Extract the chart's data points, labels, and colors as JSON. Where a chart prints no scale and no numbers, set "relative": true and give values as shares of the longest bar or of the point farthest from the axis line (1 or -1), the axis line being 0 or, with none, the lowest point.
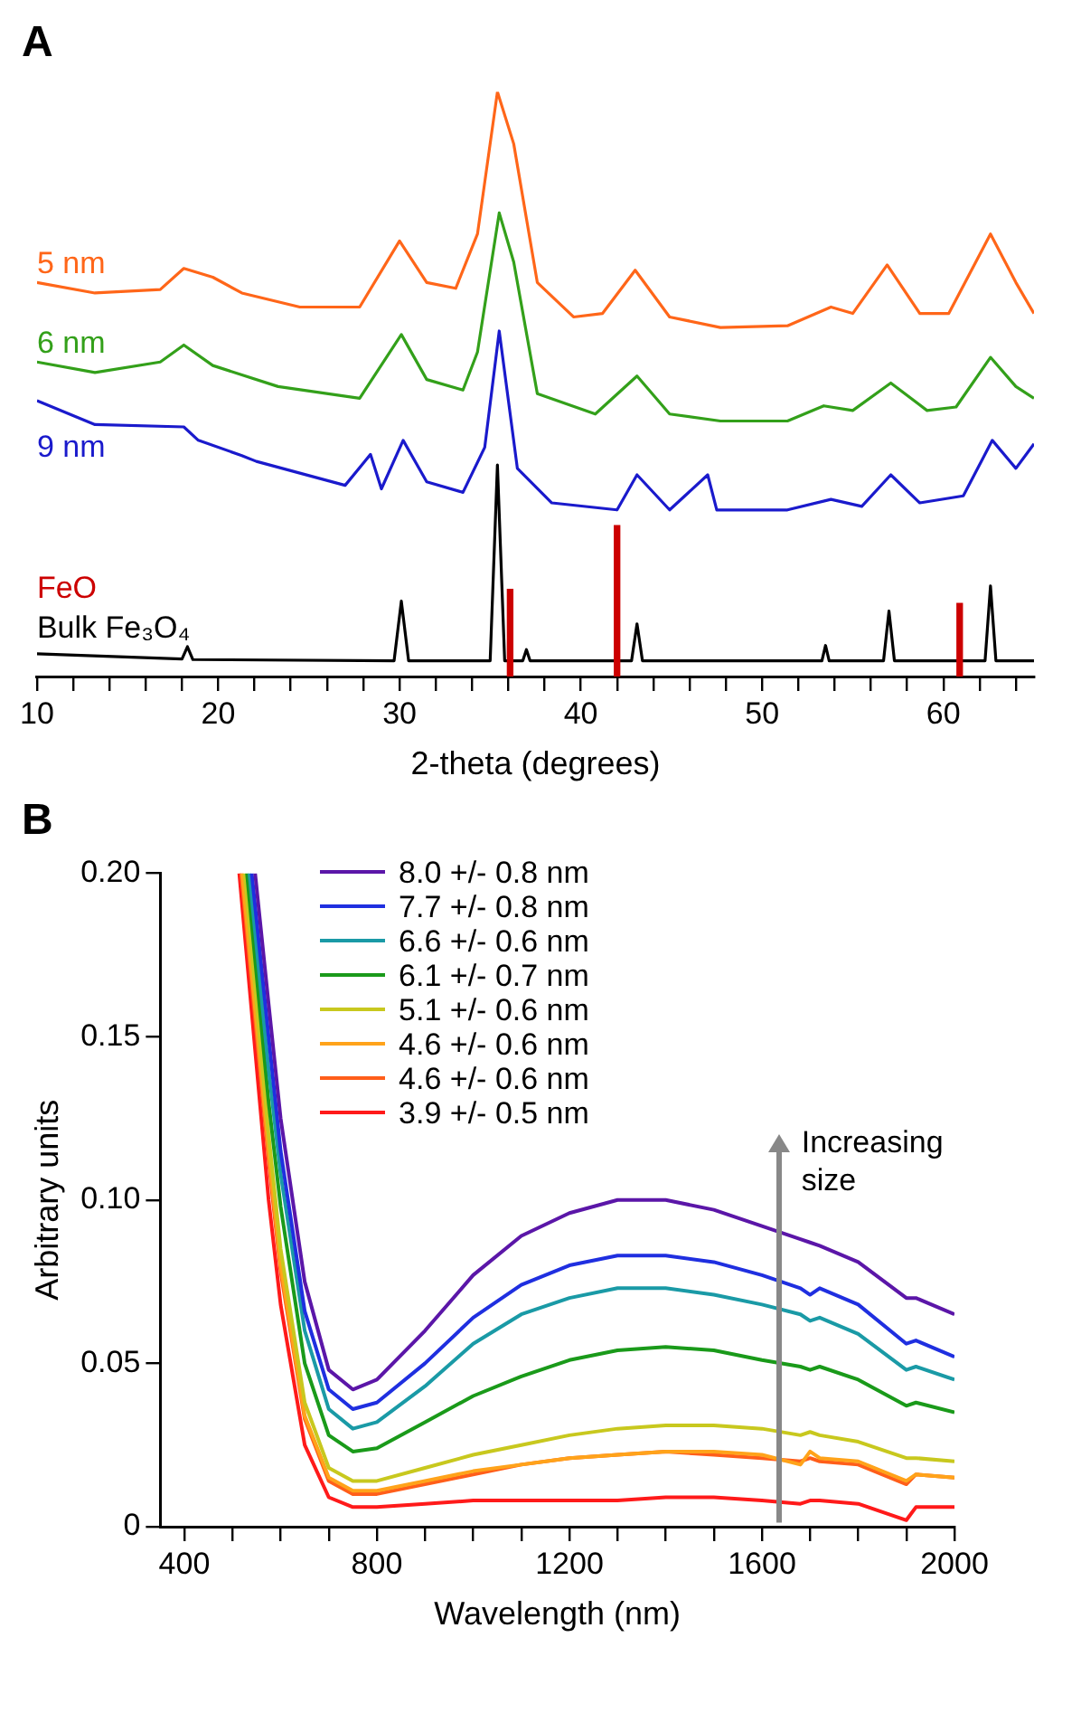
{
  "chart_data": [
    {
      "type": "line",
      "title": "A",
      "xlabel": "2-theta (degrees)",
      "relative": true,
      "legend": false,
      "grid": false,
      "xlim": [
        10,
        65
      ],
      "xticks": [
        10,
        {
          "value": 12,
          "label": null
        },
        {
          "value": 14,
          "label": null
        },
        {
          "value": 16,
          "label": null
        },
        {
          "value": 18,
          "label": null
        },
        20,
        {
          "value": 22,
          "label": null
        },
        {
          "value": 24,
          "label": null
        },
        {
          "value": 26,
          "label": null
        },
        {
          "value": 28,
          "label": null
        },
        30,
        {
          "value": 32,
          "label": null
        },
        {
          "value": 34,
          "label": null
        },
        {
          "value": 36,
          "label": null
        },
        {
          "value": 38,
          "label": null
        },
        40,
        {
          "value": 42,
          "label": null
        },
        {
          "value": 44,
          "label": null
        },
        {
          "value": 46,
          "label": null
        },
        {
          "value": 48,
          "label": null
        },
        50,
        {
          "value": 52,
          "label": null
        },
        {
          "value": 54,
          "label": null
        },
        {
          "value": 56,
          "label": null
        },
        {
          "value": 58,
          "label": null
        },
        60,
        {
          "value": 62,
          "label": null
        },
        {
          "value": 64,
          "label": null
        }
      ],
      "series": [
        {
          "name": "5 nm",
          "color": "#ff6619",
          "x": [
            10.0,
            13.2,
            16.8,
            18.1,
            19.7,
            21.3,
            24.5,
            27.8,
            30.0,
            31.5,
            33.1,
            34.3,
            35.4,
            36.3,
            37.6,
            39.6,
            41.2,
            43.0,
            44.9,
            47.7,
            51.4,
            53.8,
            55.0,
            56.9,
            58.7,
            60.3,
            62.6,
            64.0,
            65.0
          ],
          "values": [
            0.674,
            0.656,
            0.662,
            0.698,
            0.683,
            0.656,
            0.632,
            0.632,
            0.745,
            0.674,
            0.664,
            0.757,
            1.0,
            0.911,
            0.674,
            0.615,
            0.621,
            0.695,
            0.615,
            0.597,
            0.6,
            0.632,
            0.621,
            0.704,
            0.621,
            0.621,
            0.757,
            0.674,
            0.621
          ]
        },
        {
          "name": "6 nm",
          "color": "#33a01a",
          "x": [
            10.0,
            13.2,
            16.8,
            18.1,
            19.7,
            23.3,
            27.8,
            30.1,
            31.5,
            33.5,
            34.3,
            35.5,
            36.3,
            37.6,
            40.8,
            43.1,
            44.9,
            47.7,
            51.4,
            53.4,
            55.0,
            57.1,
            59.1,
            60.7,
            62.6,
            64.0,
            65.0
          ],
          "values": [
            0.538,
            0.52,
            0.538,
            0.567,
            0.532,
            0.496,
            0.476,
            0.585,
            0.508,
            0.49,
            0.555,
            0.793,
            0.709,
            0.484,
            0.449,
            0.514,
            0.449,
            0.437,
            0.437,
            0.463,
            0.455,
            0.502,
            0.455,
            0.461,
            0.546,
            0.496,
            0.476
          ]
        },
        {
          "name": "9 nm",
          "color": "#1a1acc",
          "x": [
            10.0,
            13.2,
            18.1,
            18.9,
            21.3,
            22.1,
            27.0,
            28.4,
            29.0,
            30.2,
            31.5,
            33.5,
            34.7,
            35.5,
            36.5,
            38.4,
            42.0,
            43.1,
            44.9,
            47.0,
            47.5,
            51.4,
            53.8,
            55.5,
            57.1,
            58.7,
            61.1,
            62.7,
            64.0,
            65.0
          ],
          "values": [
            0.472,
            0.431,
            0.427,
            0.404,
            0.378,
            0.368,
            0.327,
            0.38,
            0.321,
            0.404,
            0.333,
            0.315,
            0.392,
            0.591,
            0.356,
            0.297,
            0.285,
            0.345,
            0.285,
            0.345,
            0.285,
            0.285,
            0.303,
            0.291,
            0.345,
            0.297,
            0.309,
            0.404,
            0.356,
            0.398
          ]
        },
        {
          "name": "FeO",
          "type": "bar",
          "color": "#cc0000",
          "x": [
            36.1,
            42.0,
            60.9
          ],
          "values": [
            0.149,
            0.258,
            0.125
          ]
        },
        {
          "name": "Bulk Fe₃O₄",
          "color": "#000000",
          "x": [
            10,
            18.0,
            18.3,
            18.6,
            29.7,
            30.1,
            30.5,
            35.0,
            35.4,
            35.8,
            36.8,
            37.0,
            37.2,
            42.8,
            43.1,
            43.4,
            53.3,
            53.5,
            53.7,
            56.7,
            57.0,
            57.3,
            62.3,
            62.6,
            62.9,
            65
          ],
          "values": [
            0.039,
            0.03,
            0.051,
            0.029,
            0.027,
            0.129,
            0.027,
            0.027,
            0.362,
            0.027,
            0.027,
            0.046,
            0.027,
            0.027,
            0.09,
            0.027,
            0.027,
            0.053,
            0.027,
            0.027,
            0.112,
            0.027,
            0.027,
            0.155,
            0.027,
            0.027
          ]
        }
      ]
    },
    {
      "type": "line",
      "title": "B",
      "xlabel": "Wavelength (nm)",
      "ylabel": "Arbitrary units",
      "legend": "top",
      "grid": false,
      "xlim": [
        350,
        2000
      ],
      "ylim": [
        0,
        0.2
      ],
      "xticks": [
        400,
        {
          "value": 500,
          "label": null
        },
        {
          "value": 600,
          "label": null
        },
        {
          "value": 700,
          "label": null
        },
        800,
        {
          "value": 900,
          "label": null
        },
        {
          "value": 1000,
          "label": null
        },
        {
          "value": 1100,
          "label": null
        },
        1200,
        {
          "value": 1300,
          "label": null
        },
        {
          "value": 1400,
          "label": null
        },
        {
          "value": 1500,
          "label": null
        },
        1600,
        {
          "value": 1700,
          "label": null
        },
        {
          "value": 1800,
          "label": null
        },
        {
          "value": 1900,
          "label": null
        },
        2000
      ],
      "yticks": [
        0,
        0.05,
        {
          "value": 0.1,
          "label": "0.10"
        },
        0.15,
        {
          "value": 0.2,
          "label": "0.20"
        }
      ],
      "annotations": [
        "Increasing size"
      ],
      "series": [
        {
          "name": "8.0 +/- 0.8 nm",
          "color": "#5b16a8",
          "x": [
            547,
            575,
            600,
            650,
            700,
            750,
            800,
            900,
            1000,
            1100,
            1200,
            1300,
            1400,
            1500,
            1600,
            1680,
            1700,
            1720,
            1800,
            1900,
            1920,
            2000
          ],
          "values": [
            0.2,
            0.16,
            0.125,
            0.075,
            0.048,
            0.042,
            0.045,
            0.06,
            0.077,
            0.089,
            0.096,
            0.1,
            0.1,
            0.097,
            0.092,
            0.088,
            0.087,
            0.086,
            0.081,
            0.07,
            0.07,
            0.065
          ]
        },
        {
          "name": "7.7 +/- 0.8 nm",
          "color": "#1f2fe0",
          "x": [
            540,
            575,
            600,
            650,
            700,
            750,
            800,
            900,
            1000,
            1100,
            1200,
            1300,
            1400,
            1500,
            1600,
            1680,
            1700,
            1720,
            1800,
            1900,
            1920,
            2000
          ],
          "values": [
            0.2,
            0.15,
            0.115,
            0.066,
            0.042,
            0.036,
            0.038,
            0.05,
            0.064,
            0.074,
            0.08,
            0.083,
            0.083,
            0.081,
            0.077,
            0.073,
            0.071,
            0.073,
            0.068,
            0.056,
            0.057,
            0.052
          ]
        },
        {
          "name": "6.6 +/- 0.6 nm",
          "color": "#1a9aa6",
          "x": [
            535,
            575,
            600,
            650,
            700,
            750,
            800,
            900,
            1000,
            1100,
            1200,
            1300,
            1400,
            1500,
            1600,
            1680,
            1700,
            1720,
            1800,
            1900,
            1920,
            2000
          ],
          "values": [
            0.2,
            0.14,
            0.108,
            0.06,
            0.036,
            0.03,
            0.032,
            0.043,
            0.056,
            0.065,
            0.07,
            0.073,
            0.073,
            0.071,
            0.068,
            0.065,
            0.063,
            0.064,
            0.059,
            0.048,
            0.049,
            0.045
          ]
        },
        {
          "name": "6.1 +/- 0.7 nm",
          "color": "#1a9a1a",
          "x": [
            530,
            575,
            600,
            650,
            700,
            750,
            800,
            900,
            1000,
            1100,
            1200,
            1300,
            1400,
            1500,
            1600,
            1680,
            1700,
            1720,
            1800,
            1900,
            1920,
            2000
          ],
          "values": [
            0.2,
            0.13,
            0.098,
            0.05,
            0.028,
            0.023,
            0.024,
            0.032,
            0.04,
            0.046,
            0.051,
            0.054,
            0.055,
            0.054,
            0.051,
            0.049,
            0.048,
            0.049,
            0.045,
            0.037,
            0.038,
            0.035
          ]
        },
        {
          "name": "5.1 +/- 0.6 nm",
          "color": "#c8c81e",
          "x": [
            525,
            575,
            600,
            650,
            700,
            750,
            800,
            900,
            1000,
            1100,
            1200,
            1300,
            1400,
            1500,
            1600,
            1680,
            1700,
            1720,
            1800,
            1900,
            1920,
            2000
          ],
          "values": [
            0.2,
            0.12,
            0.085,
            0.038,
            0.018,
            0.014,
            0.014,
            0.018,
            0.022,
            0.025,
            0.028,
            0.03,
            0.031,
            0.031,
            0.03,
            0.028,
            0.029,
            0.028,
            0.026,
            0.021,
            0.021,
            0.02
          ]
        },
        {
          "name": "4.6 +/- 0.6 nm",
          "color": "#ffa31a",
          "x": [
            520,
            575,
            600,
            650,
            700,
            750,
            800,
            900,
            1000,
            1100,
            1200,
            1300,
            1400,
            1500,
            1600,
            1680,
            1700,
            1720,
            1800,
            1900,
            1920,
            2000
          ],
          "values": [
            0.2,
            0.115,
            0.08,
            0.034,
            0.015,
            0.011,
            0.011,
            0.014,
            0.017,
            0.019,
            0.021,
            0.022,
            0.023,
            0.023,
            0.022,
            0.019,
            0.023,
            0.021,
            0.02,
            0.014,
            0.016,
            0.015
          ]
        },
        {
          "name": "4.6 +/- 0.6 nm",
          "color": "#ff5e1a",
          "x": [
            518,
            575,
            600,
            650,
            700,
            750,
            800,
            900,
            1000,
            1100,
            1200,
            1300,
            1400,
            1500,
            1600,
            1680,
            1700,
            1720,
            1800,
            1900,
            1920,
            2000
          ],
          "values": [
            0.2,
            0.112,
            0.078,
            0.033,
            0.014,
            0.01,
            0.01,
            0.013,
            0.016,
            0.019,
            0.021,
            0.022,
            0.023,
            0.022,
            0.021,
            0.02,
            0.021,
            0.02,
            0.019,
            0.013,
            0.016,
            0.015
          ]
        },
        {
          "name": "3.9 +/- 0.5 nm",
          "color": "#ff1a1a",
          "x": [
            514,
            575,
            600,
            650,
            700,
            750,
            800,
            900,
            1000,
            1100,
            1200,
            1300,
            1400,
            1500,
            1600,
            1680,
            1700,
            1720,
            1800,
            1900,
            1920,
            2000
          ],
          "values": [
            0.2,
            0.1,
            0.068,
            0.025,
            0.009,
            0.006,
            0.006,
            0.007,
            0.008,
            0.008,
            0.008,
            0.008,
            0.009,
            0.009,
            0.008,
            0.007,
            0.008,
            0.008,
            0.007,
            0.002,
            0.006,
            0.006
          ]
        }
      ]
    }
  ]
}
